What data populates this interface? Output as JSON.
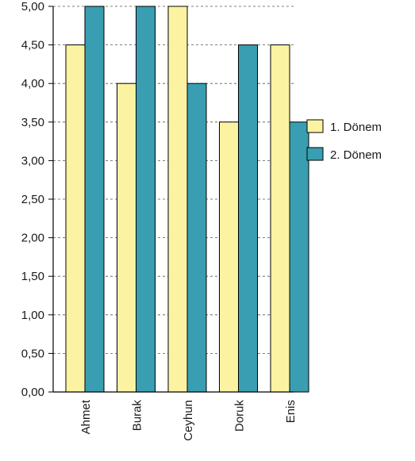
{
  "chart_data": {
    "type": "bar",
    "categories": [
      "Ahmet",
      "Burak",
      "Ceyhun",
      "Doruk",
      "Enis"
    ],
    "series": [
      {
        "name": "1. Dönem",
        "values": [
          4.5,
          4.0,
          5.0,
          3.5,
          4.5
        ],
        "color": "#fcf3a2"
      },
      {
        "name": "2. Dönem",
        "values": [
          5.0,
          5.0,
          4.0,
          4.5,
          3.5
        ],
        "color": "#3a9eb2"
      }
    ],
    "yticks": [
      "0,00",
      "0,50",
      "1,00",
      "1,50",
      "2,00",
      "2,50",
      "3,00",
      "3,50",
      "4,00",
      "4,50",
      "5,00"
    ],
    "ylim": [
      0,
      5
    ],
    "ystep": 0.5,
    "grid": "horizontal dashed",
    "legend_position": "right",
    "title": "",
    "xlabel": "",
    "ylabel": ""
  }
}
